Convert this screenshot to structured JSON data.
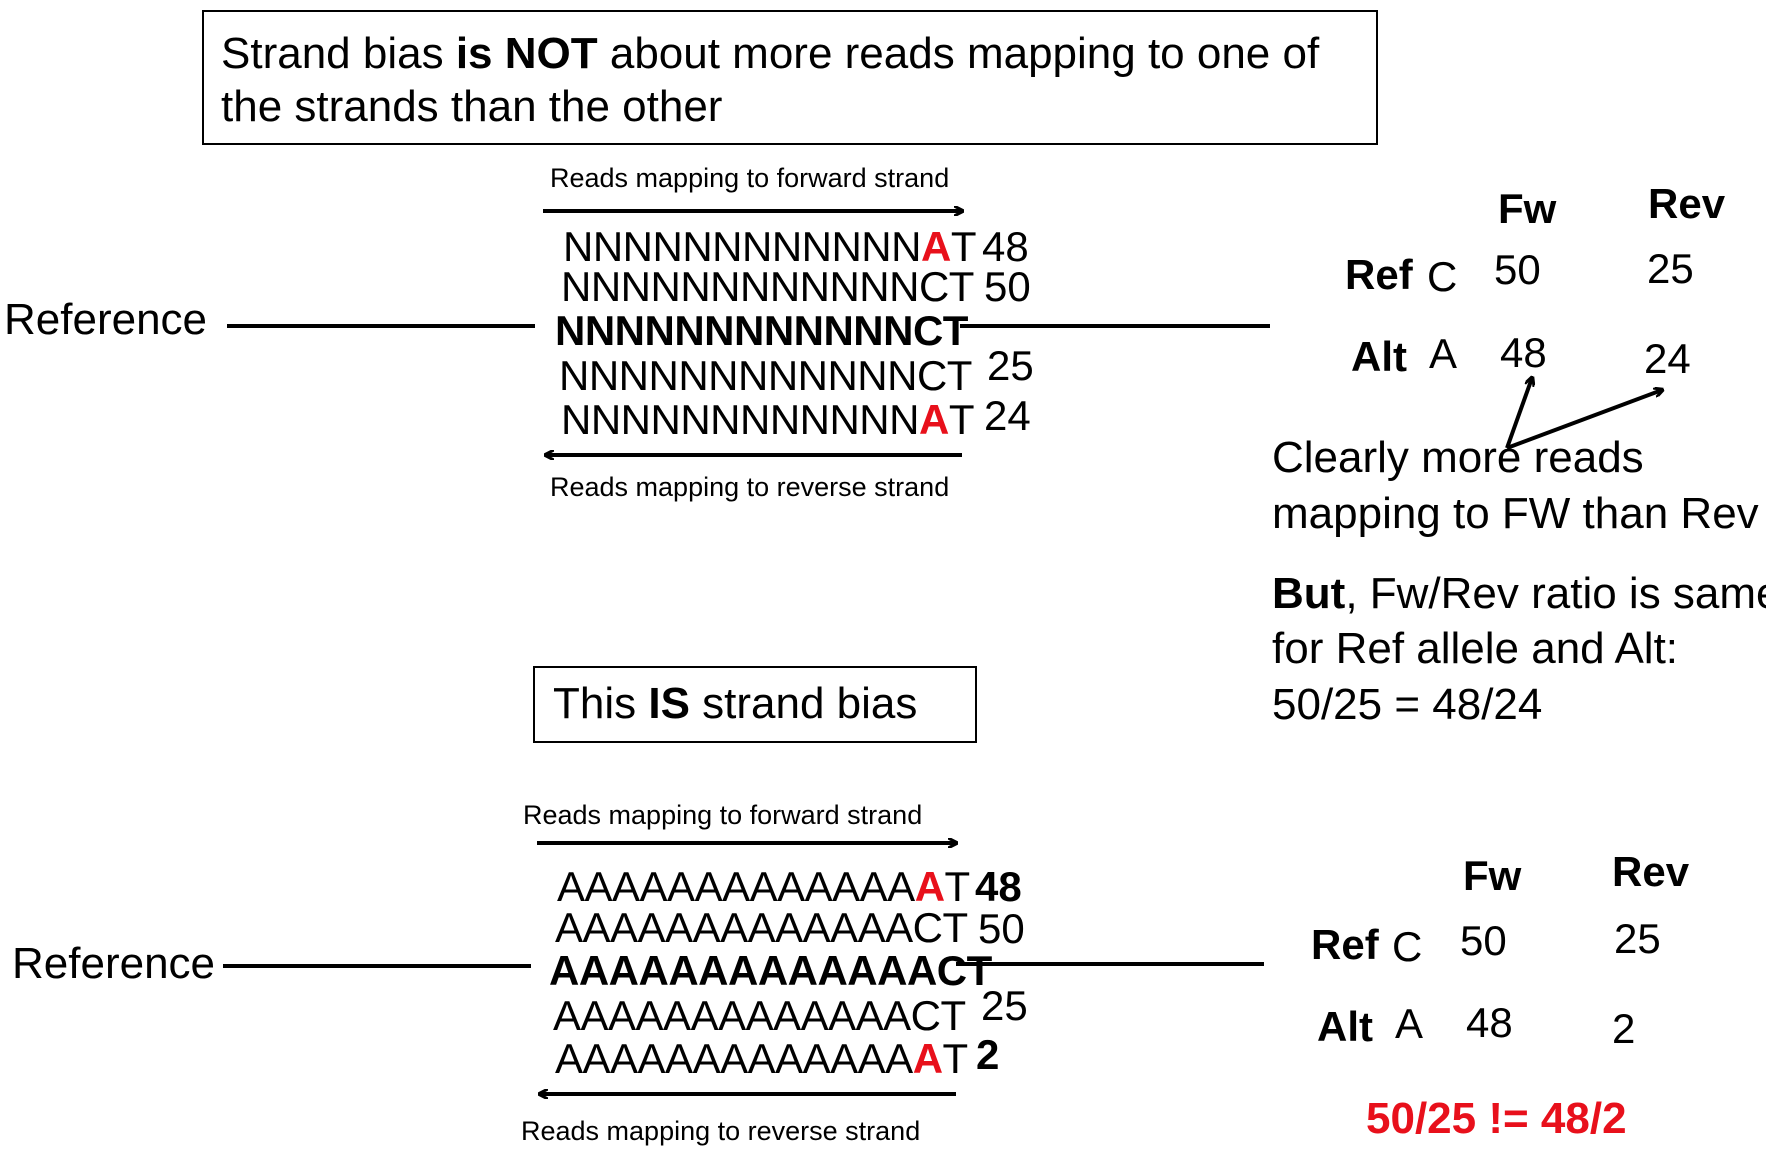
{
  "top": {
    "callout": {
      "pre": "Strand bias ",
      "is": "is",
      "not": " NOT",
      "post": " about more reads mapping to one of",
      "line2": "the strands than the other"
    },
    "reference_label": "Reference",
    "fwd_label": "Reads mapping to forward strand",
    "rev_label": "Reads mapping to reverse strand",
    "reads": [
      {
        "prefix": "NNNNNNNNNNNN",
        "alt": "A",
        "suffix": "T",
        "count": "48"
      },
      {
        "prefix": "NNNNNNNNNNNNCT",
        "alt": "",
        "suffix": "",
        "count": "50"
      },
      {
        "prefix": "NNNNNNNNNNNNCT",
        "alt": "",
        "suffix": "",
        "count": ""
      },
      {
        "prefix": "NNNNNNNNNNNNCT",
        "alt": "",
        "suffix": "",
        "count": "25"
      },
      {
        "prefix": "NNNNNNNNNNNN",
        "alt": "A",
        "suffix": "T",
        "count": "24"
      }
    ],
    "table": {
      "col_fw": "Fw",
      "col_rev": "Rev",
      "ref_label": "Ref",
      "ref_base": "C",
      "ref_fw": "50",
      "ref_rev": "25",
      "alt_label": "Alt",
      "alt_base": "A",
      "alt_fw": "48",
      "alt_rev": "24"
    },
    "note1_line1": "Clearly more reads",
    "note1_line2": "mapping to FW than Rev",
    "note2_but": "But",
    "note2_line1_rest": ", Fw/Rev ratio is same",
    "note2_line2": "for Ref allele and Alt:",
    "note2_line3": "50/25 = 48/24"
  },
  "bottom": {
    "callout": {
      "pre": "This ",
      "is": "IS",
      "post": " strand bias"
    },
    "reference_label": "Reference",
    "fwd_label": "Reads mapping to forward strand",
    "rev_label": "Reads mapping to reverse strand",
    "reads": [
      {
        "prefix": "AAAAAAAAAAAAA",
        "alt": "A",
        "suffix": "T",
        "count": "48",
        "count_bold": true
      },
      {
        "prefix": "AAAAAAAAAAAAACT",
        "alt": "",
        "suffix": "",
        "count": "50",
        "count_bold": false
      },
      {
        "prefix": "AAAAAAAAAAAAACT",
        "alt": "",
        "suffix": "",
        "count": "",
        "count_bold": false
      },
      {
        "prefix": "AAAAAAAAAAAAACT",
        "alt": "",
        "suffix": "",
        "count": "25",
        "count_bold": false
      },
      {
        "prefix": "AAAAAAAAAAAAA",
        "alt": "A",
        "suffix": "T",
        "count": "2",
        "count_bold": true
      }
    ],
    "table": {
      "col_fw": "Fw",
      "col_rev": "Rev",
      "ref_label": "Ref",
      "ref_base": "C",
      "ref_fw": "50",
      "ref_rev": "25",
      "alt_label": "Alt",
      "alt_base": "A",
      "alt_fw": "48",
      "alt_rev": "2"
    },
    "conclusion": "50/25 != 48/2"
  },
  "colors": {
    "alt_allele": "#e8101b",
    "conclusion": "#e8101b"
  }
}
